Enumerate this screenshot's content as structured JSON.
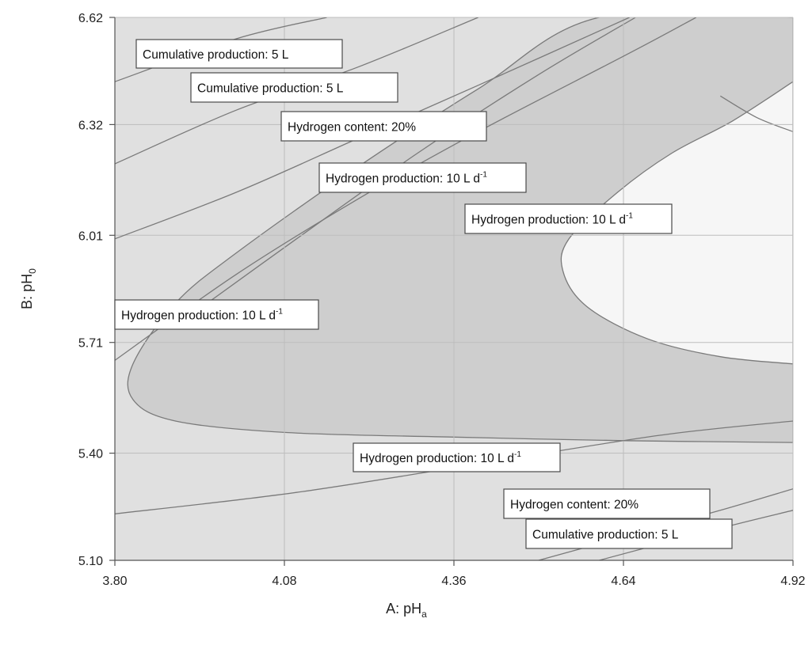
{
  "chart_data": {
    "type": "contour",
    "xlabel": {
      "prefix": "A: pH",
      "sub": "a"
    },
    "ylabel": {
      "prefix": "B: pH",
      "sub": "0"
    },
    "xlim": [
      3.8,
      4.92
    ],
    "ylim": [
      5.1,
      6.62
    ],
    "xticks": [
      "3.80",
      "4.08",
      "4.36",
      "4.64",
      "4.92"
    ],
    "yticks": [
      "5.10",
      "5.40",
      "5.71",
      "6.01",
      "6.32",
      "6.62"
    ],
    "grid": true,
    "colors": {
      "outer_region": "#e0e0e0",
      "band_region": "#cecece",
      "optimal_region": "#f6f6f6",
      "contour_line": "#7a7a7a",
      "grid_line": "#bdbdbd"
    },
    "annotations": [
      {
        "base": "Cumulative production: 5 L",
        "sup": ""
      },
      {
        "base": "Cumulative production: 5 L",
        "sup": ""
      },
      {
        "base": "Hydrogen content: 20%",
        "sup": ""
      },
      {
        "base": "Hydrogen production: 10 L d",
        "sup": "-1"
      },
      {
        "base": "Hydrogen production: 10 L d",
        "sup": "-1"
      },
      {
        "base": "Hydrogen production: 10 L d",
        "sup": "-1"
      },
      {
        "base": "Hydrogen production: 10 L d",
        "sup": "-1"
      },
      {
        "base": "Hydrogen content: 20%",
        "sup": ""
      },
      {
        "base": "Cumulative production: 5 L",
        "sup": ""
      }
    ],
    "contours": [
      {
        "name": "cumulative",
        "points": [
          [
            3.8,
            6.44
          ],
          [
            4.0,
            6.56
          ],
          [
            4.15,
            6.62
          ]
        ]
      },
      {
        "name": "cumulative",
        "points": [
          [
            3.8,
            6.21
          ],
          [
            4.0,
            6.36
          ],
          [
            4.2,
            6.48
          ],
          [
            4.4,
            6.62
          ]
        ]
      },
      {
        "name": "h2content",
        "points": [
          [
            3.8,
            6.0
          ],
          [
            4.0,
            6.13
          ],
          [
            4.2,
            6.28
          ],
          [
            4.4,
            6.43
          ],
          [
            4.65,
            6.62
          ]
        ]
      },
      {
        "name": "h2prod",
        "points": [
          [
            3.8,
            5.66
          ],
          [
            4.0,
            5.9
          ],
          [
            4.2,
            6.11
          ],
          [
            4.4,
            6.3
          ],
          [
            4.65,
            6.52
          ],
          [
            4.76,
            6.62
          ]
        ]
      },
      {
        "name": "h2content",
        "points": [
          [
            3.8,
            5.23
          ],
          [
            4.1,
            5.29
          ],
          [
            4.4,
            5.37
          ],
          [
            4.7,
            5.45
          ],
          [
            4.92,
            5.49
          ]
        ]
      },
      {
        "name": "h2content",
        "points": [
          [
            4.5,
            5.1
          ],
          [
            4.65,
            5.17
          ],
          [
            4.8,
            5.24
          ],
          [
            4.92,
            5.3
          ]
        ]
      },
      {
        "name": "cumulative",
        "points": [
          [
            4.6,
            5.1
          ],
          [
            4.8,
            5.19
          ],
          [
            4.92,
            5.24
          ]
        ]
      }
    ],
    "band_boundary": [
      [
        4.92,
        6.62
      ],
      [
        4.6,
        6.62
      ],
      [
        4.4,
        6.42
      ],
      [
        4.2,
        6.2
      ],
      [
        4.0,
        5.96
      ],
      [
        3.9,
        5.82
      ],
      [
        3.83,
        5.65
      ],
      [
        3.83,
        5.55
      ],
      [
        3.9,
        5.49
      ],
      [
        4.08,
        5.458
      ],
      [
        4.36,
        5.445
      ],
      [
        4.64,
        5.435
      ],
      [
        4.92,
        5.43
      ]
    ],
    "band_inner_edge": [
      [
        3.92,
        5.78
      ],
      [
        4.1,
        6.0
      ],
      [
        4.3,
        6.24
      ],
      [
        4.5,
        6.46
      ],
      [
        4.66,
        6.62
      ]
    ],
    "band_top_split": [
      [
        4.92,
        6.3
      ],
      [
        4.86,
        6.34
      ],
      [
        4.8,
        6.4
      ]
    ],
    "optimal_boundary": [
      [
        4.92,
        6.44
      ],
      [
        4.82,
        6.33
      ],
      [
        4.72,
        6.24
      ],
      [
        4.63,
        6.13
      ],
      [
        4.55,
        6.0
      ],
      [
        4.54,
        5.91
      ],
      [
        4.58,
        5.81
      ],
      [
        4.68,
        5.72
      ],
      [
        4.8,
        5.67
      ],
      [
        4.92,
        5.65
      ]
    ]
  }
}
